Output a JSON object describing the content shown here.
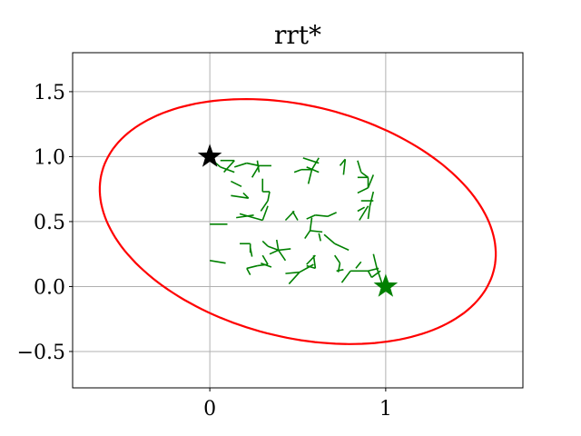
{
  "chart_data": {
    "type": "scatter",
    "title": "rrt*",
    "xlabel": "",
    "ylabel": "",
    "xlim": [
      -0.78,
      1.78
    ],
    "ylim": [
      -0.78,
      1.8
    ],
    "grid": true,
    "xticks": [
      0,
      1
    ],
    "xtick_labels": [
      "0",
      "1"
    ],
    "yticks": [
      -0.5,
      0.0,
      0.5,
      1.0,
      1.5
    ],
    "ytick_labels": [
      "−0.5",
      "0.0",
      "0.5",
      "1.0",
      "1.5"
    ],
    "start": {
      "x": 0.0,
      "y": 1.0,
      "marker": "star",
      "color": "#000000"
    },
    "goal": {
      "x": 1.0,
      "y": 0.0,
      "marker": "star",
      "color": "#008000"
    },
    "ellipse": {
      "center": [
        0.5,
        0.5
      ],
      "semi_major": 1.19,
      "semi_minor": 0.86,
      "angle_deg": -28,
      "color": "#ff0000"
    },
    "tree_color": "#008000",
    "tree_edges": [
      [
        [
          0.0,
          0.99
        ],
        [
          0.06,
          0.92
        ]
      ],
      [
        [
          0.06,
          0.92
        ],
        [
          0.14,
          0.88
        ]
      ],
      [
        [
          0.06,
          0.97
        ],
        [
          0.14,
          0.97
        ]
      ],
      [
        [
          0.14,
          0.97
        ],
        [
          0.08,
          0.88
        ]
      ],
      [
        [
          0.14,
          0.92
        ],
        [
          0.21,
          0.95
        ]
      ],
      [
        [
          0.21,
          0.95
        ],
        [
          0.28,
          0.93
        ]
      ],
      [
        [
          0.28,
          0.93
        ],
        [
          0.35,
          0.93
        ]
      ],
      [
        [
          0.27,
          0.97
        ],
        [
          0.28,
          0.88
        ]
      ],
      [
        [
          0.28,
          0.93
        ],
        [
          0.24,
          0.84
        ]
      ],
      [
        [
          0.12,
          0.81
        ],
        [
          0.18,
          0.77
        ]
      ],
      [
        [
          0.19,
          0.72
        ],
        [
          0.22,
          0.68
        ]
      ],
      [
        [
          0.22,
          0.68
        ],
        [
          0.12,
          0.7
        ]
      ],
      [
        [
          0.3,
          0.83
        ],
        [
          0.3,
          0.73
        ]
      ],
      [
        [
          0.3,
          0.73
        ],
        [
          0.34,
          0.73
        ]
      ],
      [
        [
          0.34,
          0.73
        ],
        [
          0.33,
          0.66
        ]
      ],
      [
        [
          0.33,
          0.66
        ],
        [
          0.29,
          0.58
        ]
      ],
      [
        [
          0.33,
          0.62
        ],
        [
          0.3,
          0.51
        ]
      ],
      [
        [
          0.3,
          0.51
        ],
        [
          0.17,
          0.56
        ]
      ],
      [
        [
          0.15,
          0.53
        ],
        [
          0.25,
          0.55
        ]
      ],
      [
        [
          0.0,
          0.48
        ],
        [
          0.1,
          0.48
        ]
      ],
      [
        [
          0.48,
          0.88
        ],
        [
          0.52,
          0.9
        ]
      ],
      [
        [
          0.52,
          0.9
        ],
        [
          0.58,
          0.9
        ]
      ],
      [
        [
          0.58,
          0.9
        ],
        [
          0.62,
          0.99
        ]
      ],
      [
        [
          0.58,
          0.9
        ],
        [
          0.56,
          0.79
        ]
      ],
      [
        [
          0.62,
          0.88
        ],
        [
          0.55,
          0.92
        ]
      ],
      [
        [
          0.53,
          0.99
        ],
        [
          0.62,
          0.95
        ]
      ],
      [
        [
          0.74,
          0.93
        ],
        [
          0.77,
          0.98
        ]
      ],
      [
        [
          0.77,
          0.98
        ],
        [
          0.76,
          0.86
        ]
      ],
      [
        [
          0.84,
          0.97
        ],
        [
          0.86,
          0.88
        ]
      ],
      [
        [
          0.86,
          0.88
        ],
        [
          0.9,
          0.84
        ]
      ],
      [
        [
          0.84,
          0.84
        ],
        [
          0.9,
          0.84
        ]
      ],
      [
        [
          0.9,
          0.84
        ],
        [
          0.9,
          0.76
        ]
      ],
      [
        [
          0.93,
          0.86
        ],
        [
          0.9,
          0.76
        ]
      ],
      [
        [
          0.9,
          0.76
        ],
        [
          0.84,
          0.72
        ]
      ],
      [
        [
          0.93,
          0.73
        ],
        [
          0.91,
          0.62
        ]
      ],
      [
        [
          0.91,
          0.62
        ],
        [
          0.9,
          0.52
        ]
      ],
      [
        [
          0.86,
          0.66
        ],
        [
          0.93,
          0.66
        ]
      ],
      [
        [
          0.88,
          0.61
        ],
        [
          0.84,
          0.58
        ]
      ],
      [
        [
          0.9,
          0.62
        ],
        [
          0.85,
          0.51
        ]
      ],
      [
        [
          0.47,
          0.58
        ],
        [
          0.5,
          0.51
        ]
      ],
      [
        [
          0.43,
          0.51
        ],
        [
          0.48,
          0.58
        ]
      ],
      [
        [
          0.55,
          0.52
        ],
        [
          0.6,
          0.55
        ]
      ],
      [
        [
          0.6,
          0.55
        ],
        [
          0.67,
          0.54
        ]
      ],
      [
        [
          0.67,
          0.54
        ],
        [
          0.72,
          0.57
        ]
      ],
      [
        [
          0.58,
          0.53
        ],
        [
          0.57,
          0.43
        ]
      ],
      [
        [
          0.57,
          0.43
        ],
        [
          0.54,
          0.37
        ]
      ],
      [
        [
          0.57,
          0.43
        ],
        [
          0.64,
          0.42
        ]
      ],
      [
        [
          0.62,
          0.41
        ],
        [
          0.63,
          0.35
        ]
      ],
      [
        [
          0.65,
          0.4
        ],
        [
          0.71,
          0.33
        ]
      ],
      [
        [
          0.71,
          0.33
        ],
        [
          0.79,
          0.28
        ]
      ],
      [
        [
          0.17,
          0.33
        ],
        [
          0.23,
          0.33
        ]
      ],
      [
        [
          0.23,
          0.33
        ],
        [
          0.23,
          0.26
        ]
      ],
      [
        [
          0.23,
          0.3
        ],
        [
          0.24,
          0.23
        ]
      ],
      [
        [
          0.3,
          0.35
        ],
        [
          0.33,
          0.31
        ]
      ],
      [
        [
          0.33,
          0.31
        ],
        [
          0.39,
          0.28
        ]
      ],
      [
        [
          0.39,
          0.28
        ],
        [
          0.46,
          0.29
        ]
      ],
      [
        [
          0.39,
          0.28
        ],
        [
          0.38,
          0.36
        ]
      ],
      [
        [
          0.39,
          0.28
        ],
        [
          0.43,
          0.2
        ]
      ],
      [
        [
          0.39,
          0.28
        ],
        [
          0.34,
          0.25
        ]
      ],
      [
        [
          0.3,
          0.24
        ],
        [
          0.33,
          0.17
        ]
      ],
      [
        [
          0.33,
          0.17
        ],
        [
          0.27,
          0.16
        ]
      ],
      [
        [
          0.27,
          0.16
        ],
        [
          0.21,
          0.14
        ]
      ],
      [
        [
          0.21,
          0.14
        ],
        [
          0.23,
          0.09
        ]
      ],
      [
        [
          0.29,
          0.18
        ],
        [
          0.35,
          0.15
        ]
      ],
      [
        [
          0.0,
          0.2
        ],
        [
          0.09,
          0.18
        ]
      ],
      [
        [
          0.43,
          0.1
        ],
        [
          0.51,
          0.11
        ]
      ],
      [
        [
          0.51,
          0.11
        ],
        [
          0.59,
          0.17
        ]
      ],
      [
        [
          0.51,
          0.11
        ],
        [
          0.45,
          0.02
        ]
      ],
      [
        [
          0.55,
          0.16
        ],
        [
          0.6,
          0.14
        ]
      ],
      [
        [
          0.55,
          0.17
        ],
        [
          0.6,
          0.24
        ]
      ],
      [
        [
          0.6,
          0.14
        ],
        [
          0.59,
          0.24
        ]
      ],
      [
        [
          0.71,
          0.24
        ],
        [
          0.74,
          0.18
        ]
      ],
      [
        [
          0.72,
          0.12
        ],
        [
          0.76,
          0.13
        ]
      ],
      [
        [
          0.74,
          0.18
        ],
        [
          0.73,
          0.11
        ]
      ],
      [
        [
          0.75,
          0.03
        ],
        [
          0.8,
          0.12
        ]
      ],
      [
        [
          0.8,
          0.12
        ],
        [
          0.9,
          0.12
        ]
      ],
      [
        [
          0.9,
          0.12
        ],
        [
          0.92,
          0.07
        ]
      ],
      [
        [
          0.83,
          0.14
        ],
        [
          0.86,
          0.19
        ]
      ],
      [
        [
          0.9,
          0.12
        ],
        [
          0.96,
          0.14
        ]
      ],
      [
        [
          0.92,
          0.07
        ],
        [
          0.97,
          0.12
        ]
      ],
      [
        [
          0.93,
          0.25
        ],
        [
          0.95,
          0.14
        ]
      ],
      [
        [
          0.95,
          0.14
        ],
        [
          0.98,
          0.02
        ]
      ]
    ]
  }
}
